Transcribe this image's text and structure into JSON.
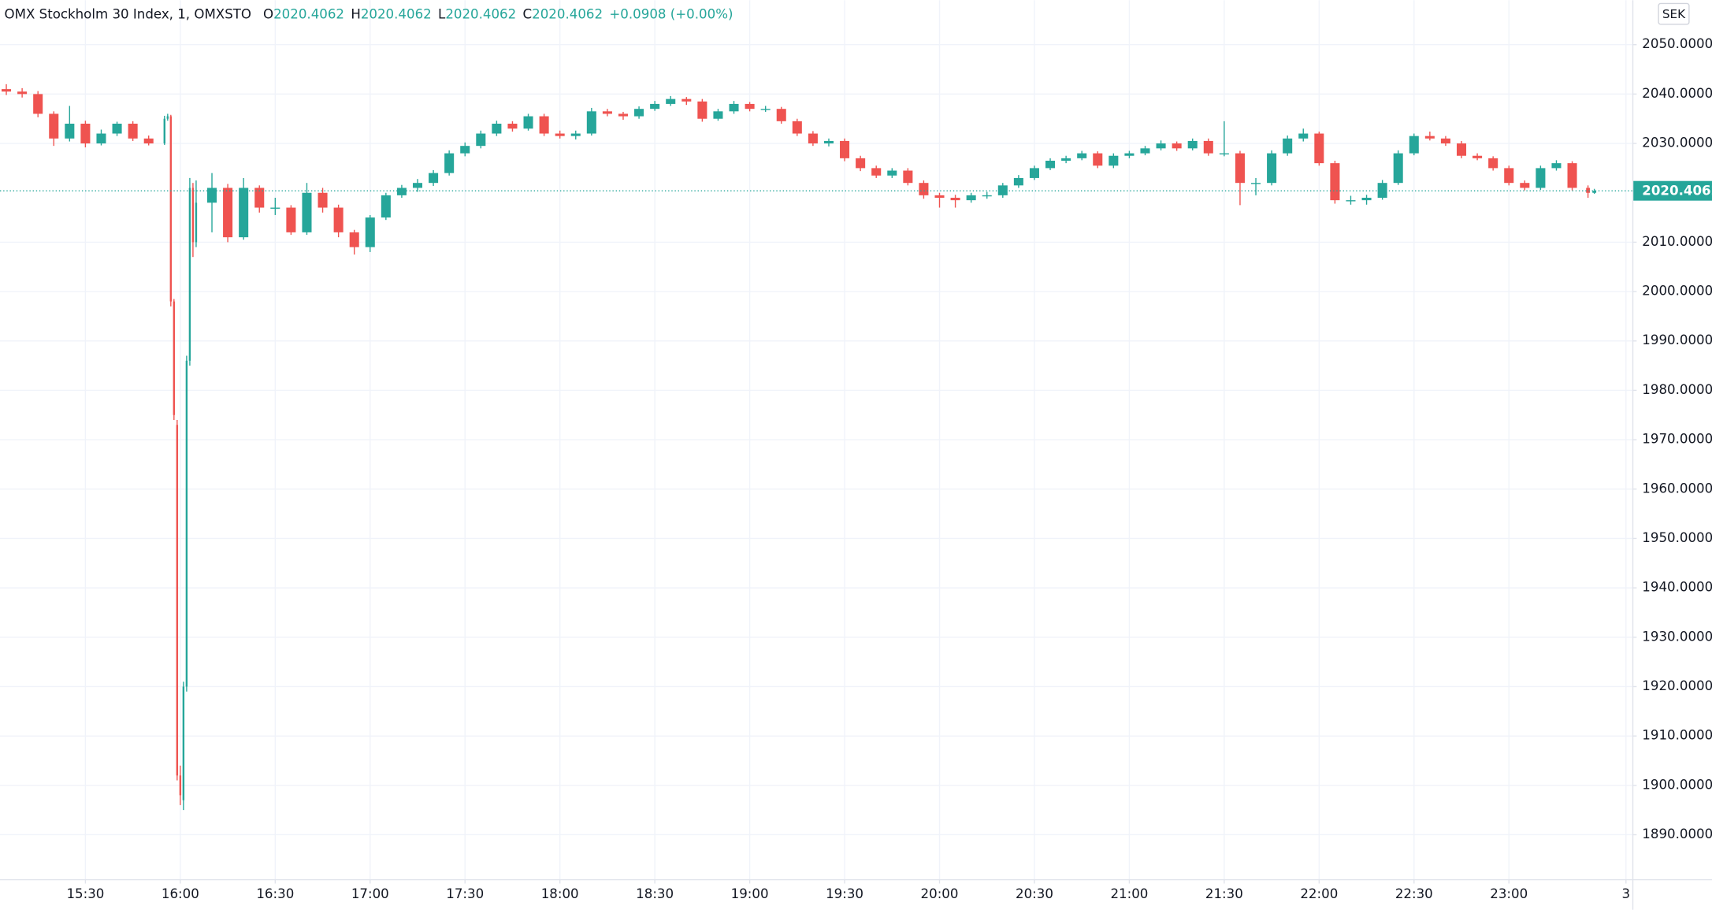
{
  "chart_data": {
    "type": "candlestick",
    "title": "OMX Stockholm 30 Index, 1, OMXSTO",
    "ohlc_legend": [
      {
        "key": "O",
        "value": "2020.4062"
      },
      {
        "key": "H",
        "value": "2020.4062"
      },
      {
        "key": "L",
        "value": "2020.4062"
      },
      {
        "key": "C",
        "value": "2020.4062"
      }
    ],
    "change": "+0.0908 (+0.00%)",
    "currency": "SEK",
    "last_price": 2020.4062,
    "up_color": "#26a69a",
    "down_color": "#ef5350",
    "grid": true,
    "x": [
      "15:05",
      "15:10",
      "15:15",
      "15:20",
      "15:25",
      "15:30",
      "15:35",
      "15:40",
      "15:45",
      "15:50",
      "15:55",
      "15:56",
      "15:57",
      "15:58",
      "15:59",
      "16:00",
      "16:01",
      "16:02",
      "16:03",
      "16:04",
      "16:05",
      "16:10",
      "16:15",
      "16:20",
      "16:25",
      "16:30",
      "16:35",
      "16:40",
      "16:45",
      "16:50",
      "16:55",
      "17:00",
      "17:05",
      "17:10",
      "17:15",
      "17:20",
      "17:25",
      "17:30",
      "17:35",
      "17:40",
      "17:45",
      "17:50",
      "17:55",
      "18:00",
      "18:05",
      "18:10",
      "18:15",
      "18:20",
      "18:25",
      "18:30",
      "18:35",
      "18:40",
      "18:45",
      "18:50",
      "18:55",
      "19:00",
      "19:05",
      "19:10",
      "19:15",
      "19:20",
      "19:25",
      "19:30",
      "19:35",
      "19:40",
      "19:45",
      "19:50",
      "19:55",
      "20:00",
      "20:05",
      "20:10",
      "20:15",
      "20:20",
      "20:25",
      "20:30",
      "20:35",
      "20:40",
      "20:45",
      "20:50",
      "20:55",
      "21:00",
      "21:05",
      "21:10",
      "21:15",
      "21:20",
      "21:25",
      "21:30",
      "21:35",
      "21:40",
      "21:45",
      "21:50",
      "21:55",
      "22:00",
      "22:05",
      "22:10",
      "22:15",
      "22:20",
      "22:25",
      "22:30",
      "22:35",
      "22:40",
      "22:45",
      "22:50",
      "22:55",
      "23:00",
      "23:05",
      "23:10",
      "23:15",
      "23:20",
      "23:25",
      "23:27"
    ],
    "open": [
      2041,
      2040.5,
      2040,
      2036,
      2031,
      2034,
      2030,
      2032,
      2034,
      2031,
      2030,
      2035,
      2035.5,
      1998,
      1973,
      1902,
      1897,
      1920,
      1986,
      2021,
      2010,
      2018,
      2021,
      2011,
      2021,
      2017,
      2017,
      2012,
      2020,
      2017,
      2012,
      2009,
      2015,
      2019.5,
      2021,
      2022,
      2024,
      2028,
      2029.5,
      2032,
      2034,
      2033,
      2035.5,
      2032,
      2031.5,
      2032,
      2036.5,
      2036,
      2035.5,
      2037,
      2038,
      2039,
      2038.5,
      2035,
      2036.5,
      2038,
      2037,
      2037,
      2034.5,
      2032,
      2030,
      2030.5,
      2027,
      2025,
      2023.5,
      2024.5,
      2022,
      2019.5,
      2019,
      2018.5,
      2019.5,
      2019.5,
      2021.5,
      2023,
      2025,
      2026.5,
      2027,
      2028,
      2025.5,
      2027.5,
      2028,
      2029,
      2030,
      2029,
      2030.5,
      2028,
      2028,
      2022,
      2022,
      2028,
      2031,
      2032,
      2026,
      2018.5,
      2018.5,
      2019,
      2022,
      2028,
      2031.5,
      2031,
      2030,
      2027.5,
      2027,
      2025,
      2022,
      2021,
      2025,
      2026,
      2021,
      2020
    ],
    "high": [
      2042,
      2041.2,
      2040.6,
      2036.5,
      2037.6,
      2034.6,
      2032.8,
      2034.4,
      2034.5,
      2031.6,
      2035.6,
      2036,
      2035.8,
      1998.5,
      1974,
      1904,
      1921,
      1987,
      2023,
      2022,
      2022.5,
      2024,
      2021.8,
      2023,
      2021.5,
      2019,
      2017.5,
      2022,
      2021,
      2017.6,
      2012.5,
      2015.5,
      2020,
      2021.6,
      2022.8,
      2024.6,
      2028.6,
      2030.2,
      2032.6,
      2034.6,
      2034.5,
      2036,
      2036,
      2032.6,
      2032.6,
      2037.2,
      2037,
      2036.4,
      2037.5,
      2038.6,
      2039.6,
      2039.4,
      2039,
      2037,
      2038.6,
      2038.4,
      2037.6,
      2037.4,
      2035,
      2032.5,
      2031,
      2031,
      2027.5,
      2025.5,
      2025,
      2025,
      2022.5,
      2020,
      2019.6,
      2020,
      2020.2,
      2022,
      2023.6,
      2025.5,
      2027,
      2027.5,
      2028.5,
      2028.4,
      2028,
      2028.5,
      2029.5,
      2030.6,
      2030.4,
      2031,
      2031,
      2034.5,
      2028.5,
      2023,
      2028.6,
      2031.6,
      2033,
      2032.4,
      2026.5,
      2019.4,
      2019.6,
      2022.6,
      2028.6,
      2032,
      2032.4,
      2031.5,
      2030.5,
      2028,
      2027.4,
      2025.5,
      2022.5,
      2025.5,
      2026.6,
      2026.4,
      2021.5,
      2020.8
    ],
    "low": [
      2039.8,
      2039.3,
      2035.3,
      2029.5,
      2030.4,
      2029.2,
      2029.6,
      2031.5,
      2030.5,
      2029.6,
      2029.7,
      2034.6,
      1997,
      1974,
      1901,
      1896,
      1895,
      1919,
      1985,
      2007,
      2009,
      2012,
      2010,
      2010.5,
      2016,
      2015.5,
      2011.5,
      2011.5,
      2016,
      2011,
      2007.5,
      2008,
      2014.5,
      2019,
      2020.2,
      2021.4,
      2023.5,
      2027.4,
      2029,
      2031.5,
      2032.4,
      2032.6,
      2031.5,
      2031,
      2030.8,
      2031.6,
      2035.5,
      2034.8,
      2035,
      2036.6,
      2037.6,
      2037.8,
      2034.4,
      2034.6,
      2036,
      2036.5,
      2036.4,
      2034,
      2031.5,
      2029.5,
      2029.4,
      2026.4,
      2024.4,
      2023,
      2023,
      2021.5,
      2018.8,
      2017,
      2017,
      2018,
      2018.8,
      2019,
      2021,
      2022.6,
      2024.6,
      2026,
      2026.6,
      2025,
      2025,
      2027,
      2027.6,
      2028.6,
      2028.5,
      2028.6,
      2027.5,
      2027.4,
      2017.5,
      2019.5,
      2021.5,
      2027.5,
      2030.4,
      2025.5,
      2017.8,
      2017.6,
      2017.6,
      2018.6,
      2021.6,
      2027.6,
      2030.6,
      2029.5,
      2027,
      2026.6,
      2024.5,
      2021.5,
      2020.5,
      2020.6,
      2024.5,
      2020.5,
      2019,
      2019.8
    ],
    "close": [
      2040.5,
      2040,
      2036,
      2031,
      2034,
      2030,
      2032,
      2034,
      2031,
      2030,
      2035,
      2035.5,
      1998,
      1975,
      1902,
      1898,
      1920,
      1986,
      2021,
      2010,
      2018,
      2021,
      2011,
      2021,
      2017,
      2017,
      2012,
      2020,
      2017,
      2012,
      2009,
      2015,
      2019.5,
      2021,
      2022,
      2024,
      2028,
      2029.5,
      2032,
      2034,
      2033,
      2035.5,
      2032,
      2031.5,
      2032,
      2036.5,
      2036,
      2035.5,
      2037,
      2038,
      2039,
      2038.5,
      2035,
      2036.5,
      2038,
      2037,
      2037,
      2034.5,
      2032,
      2030,
      2030.5,
      2027,
      2025,
      2023.5,
      2024.5,
      2022,
      2019.5,
      2019,
      2018.5,
      2019.5,
      2019.5,
      2021.5,
      2023,
      2025,
      2026.5,
      2027,
      2028,
      2025.5,
      2027.5,
      2028,
      2029,
      2030,
      2029,
      2030.5,
      2028,
      2028,
      2022,
      2022,
      2028,
      2031,
      2032,
      2026,
      2018.5,
      2018.5,
      2019,
      2022,
      2028,
      2031.5,
      2031,
      2030,
      2027.5,
      2027,
      2025,
      2022,
      2021,
      2025,
      2026,
      2021,
      2020,
      2020.4062
    ],
    "xlim": [
      "15:03",
      "23:39"
    ],
    "xticks": [
      "15:30",
      "16:00",
      "16:30",
      "17:00",
      "17:30",
      "18:00",
      "18:30",
      "19:00",
      "19:30",
      "20:00",
      "20:30",
      "21:00",
      "21:30",
      "22:00",
      "22:30",
      "23:00",
      {
        "value": "23:37",
        "label": "3"
      }
    ],
    "ylim": [
      1881,
      2059
    ],
    "yticks": [
      {
        "value": 2050,
        "label": "2050.0000"
      },
      {
        "value": 2040,
        "label": "2040.0000"
      },
      {
        "value": 2030,
        "label": "2030.0000"
      },
      {
        "value": 2010,
        "label": "2010.0000"
      },
      {
        "value": 2000,
        "label": "2000.0000"
      },
      {
        "value": 1990,
        "label": "1990.0000"
      },
      {
        "value": 1980,
        "label": "1980.0000"
      },
      {
        "value": 1970,
        "label": "1970.0000"
      },
      {
        "value": 1960,
        "label": "1960.0000"
      },
      {
        "value": 1950,
        "label": "1950.0000"
      },
      {
        "value": 1940,
        "label": "1940.0000"
      },
      {
        "value": 1930,
        "label": "1930.0000"
      },
      {
        "value": 1920,
        "label": "1920.0000"
      },
      {
        "value": 1910,
        "label": "1910.0000"
      },
      {
        "value": 1900,
        "label": "1900.0000"
      },
      {
        "value": 1890,
        "label": "1890.0000"
      }
    ]
  }
}
